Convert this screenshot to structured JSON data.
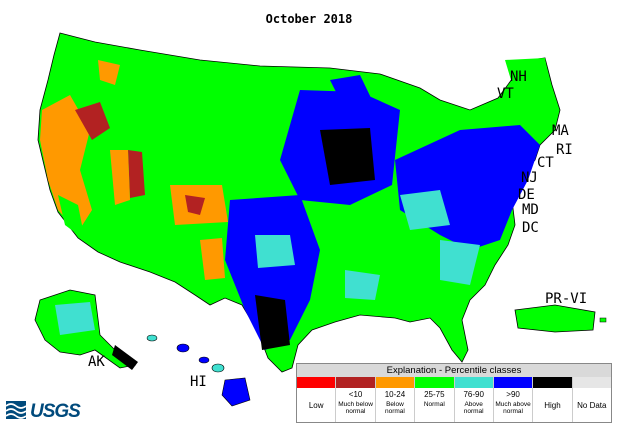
{
  "title": "October 2018",
  "colors": {
    "low": "#ff0000",
    "lt10": "#b22222",
    "p10_24": "#ff9900",
    "p25_75": "#00ff00",
    "p76_90": "#40e0d0",
    "gt90": "#0000ff",
    "high": "#000000",
    "nodata": "#e6e6e6",
    "boundary": "#000000"
  },
  "state_labels": {
    "nh": "NH",
    "vt": "VT",
    "ma": "MA",
    "ri": "RI",
    "ct": "CT",
    "nj": "NJ",
    "de": "DE",
    "md": "MD",
    "dc": "DC",
    "prvi": "PR-VI",
    "ak": "AK",
    "hi": "HI"
  },
  "legend": {
    "title": "Explanation - Percentile classes",
    "classes": [
      {
        "range": "",
        "label": "Low",
        "color": "#ff0000"
      },
      {
        "range": "<10",
        "label": "Much below\nnormal",
        "color": "#b22222"
      },
      {
        "range": "10-24",
        "label": "Below\nnormal",
        "color": "#ff9900"
      },
      {
        "range": "25-75",
        "label": "Normal",
        "color": "#00ff00"
      },
      {
        "range": "76-90",
        "label": "Above\nnormal",
        "color": "#40e0d0"
      },
      {
        "range": ">90",
        "label": "Much above\nnormal",
        "color": "#0000ff"
      },
      {
        "range": "",
        "label": "High",
        "color": "#000000"
      },
      {
        "range": "",
        "label": "No Data",
        "color": "#e6e6e6"
      }
    ]
  },
  "logo": {
    "text": "USGS"
  }
}
